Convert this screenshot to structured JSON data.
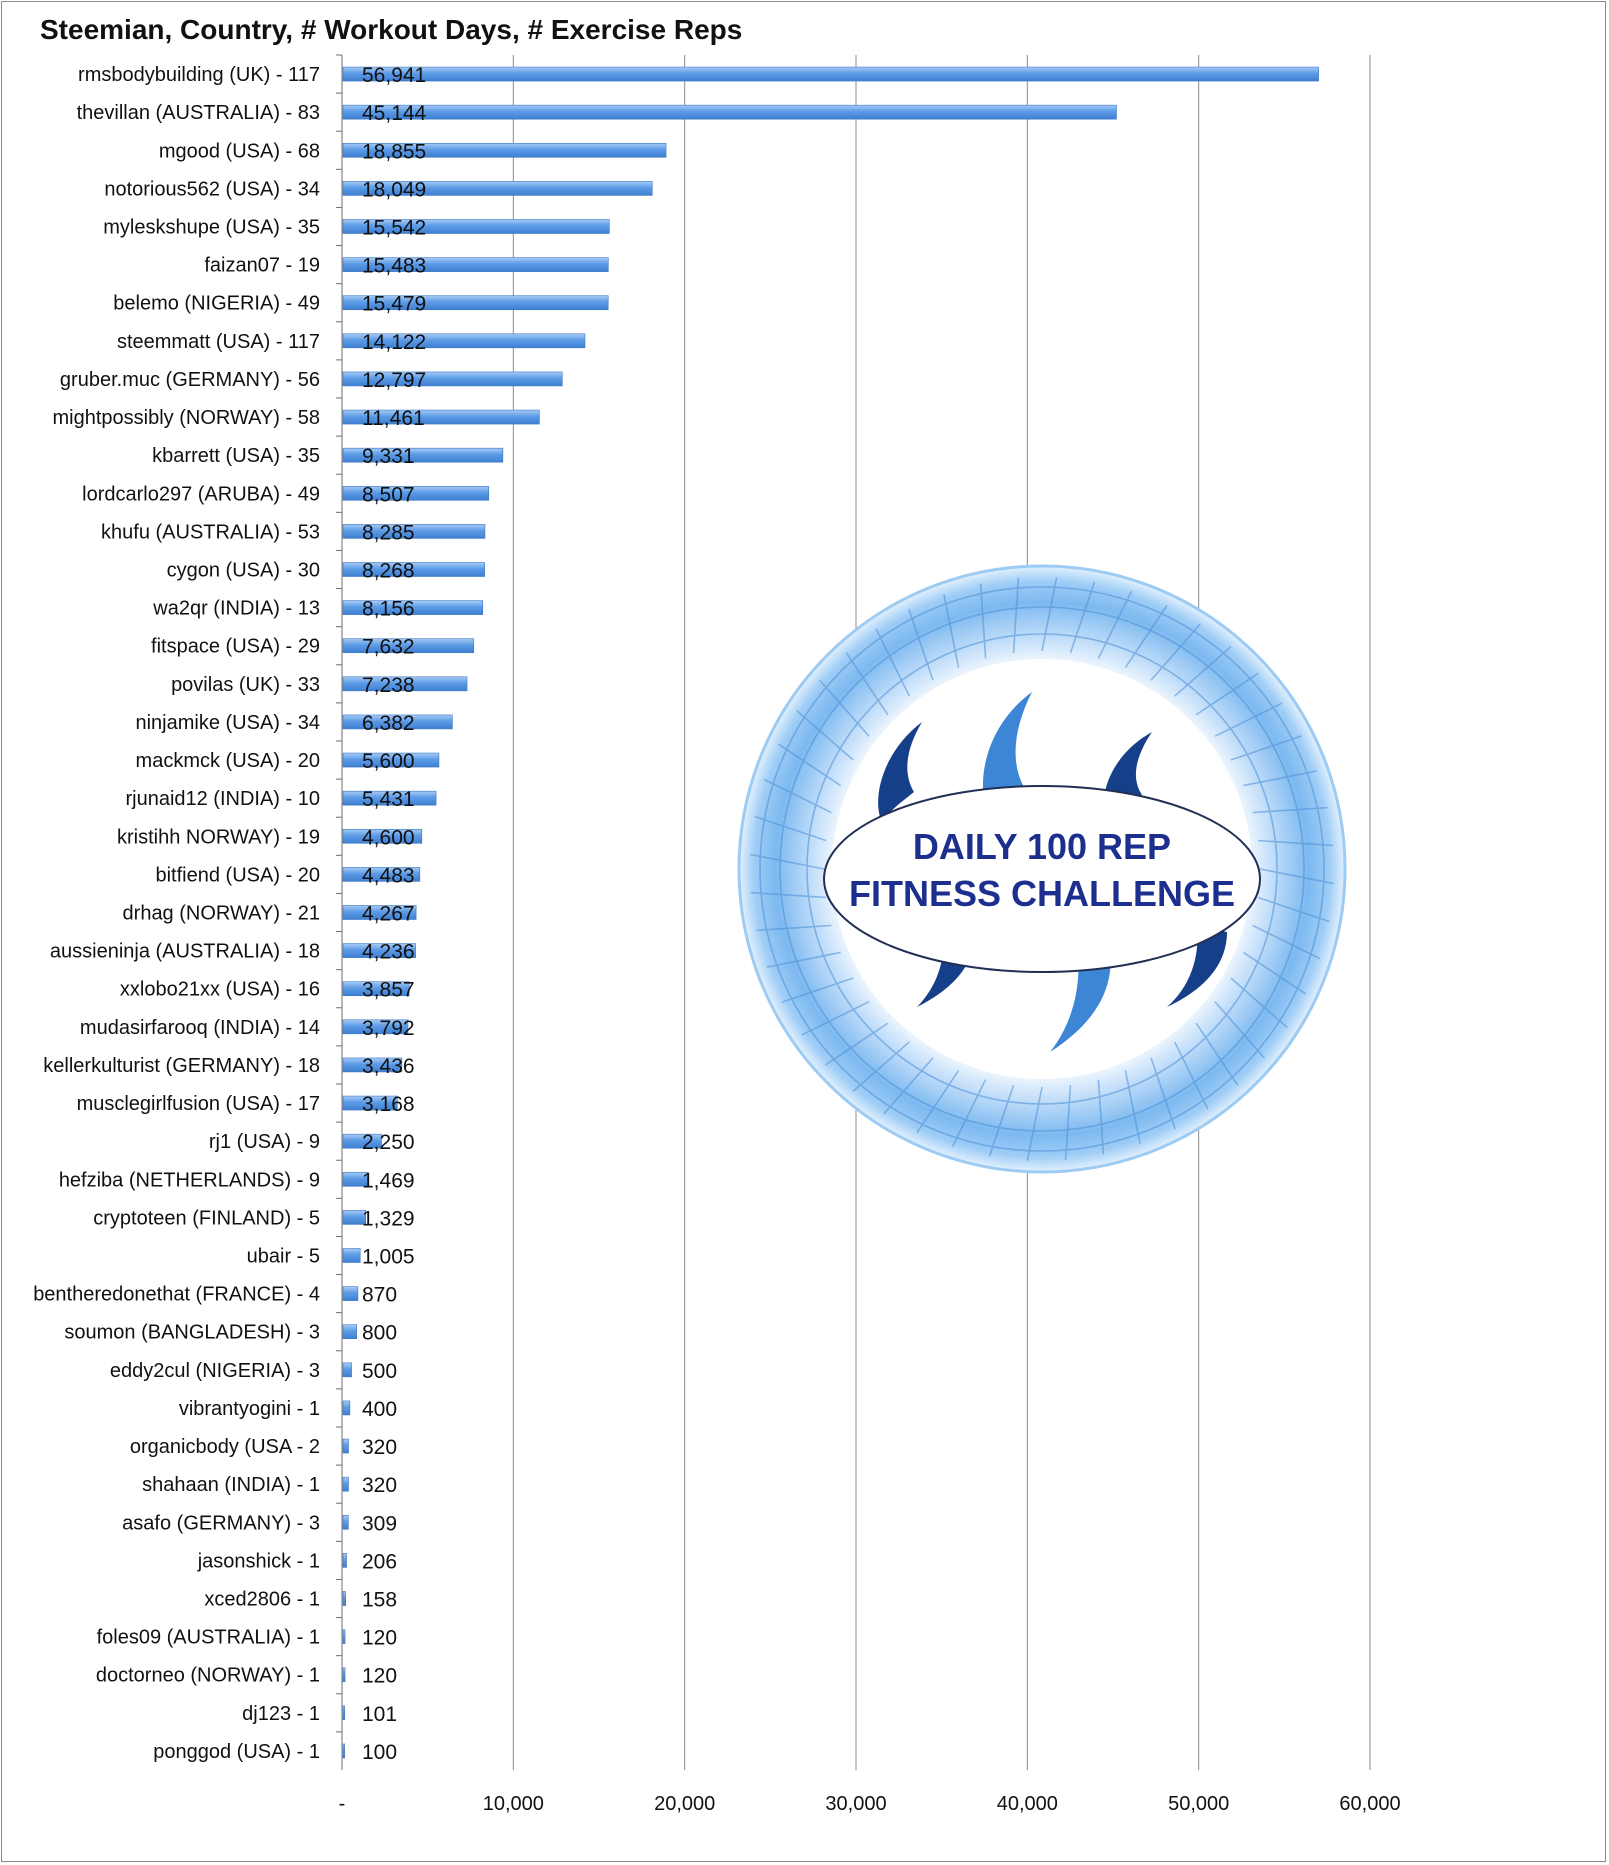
{
  "chart_data": {
    "type": "bar",
    "orientation": "horizontal",
    "title": "Steemian, Country, # Workout Days, # Exercise Reps",
    "xlabel": "",
    "ylabel": "",
    "xlim": [
      0,
      60000
    ],
    "x_ticks": [
      0,
      10000,
      20000,
      30000,
      40000,
      50000,
      60000
    ],
    "x_tick_labels": [
      "-",
      "10,000",
      "20,000",
      "30,000",
      "40,000",
      "50,000",
      "60,000"
    ],
    "grid": "vertical",
    "legend": "none",
    "bar_color": "#5b9be6",
    "categories": [
      "rmsbodybuilding (UK) - 117",
      "thevillan (AUSTRALIA) - 83",
      "mgood (USA) - 68",
      "notorious562 (USA) - 34",
      "myleskshupe (USA) - 35",
      "faizan07 - 19",
      "belemo (NIGERIA) - 49",
      "steemmatt (USA) - 117",
      "gruber.muc (GERMANY) - 56",
      "mightpossibly (NORWAY) - 58",
      "kbarrett (USA) - 35",
      "lordcarlo297 (ARUBA) - 49",
      "khufu (AUSTRALIA) - 53",
      "cygon (USA) - 30",
      "wa2qr (INDIA) - 13",
      "fitspace (USA) - 29",
      "povilas (UK) - 33",
      "ninjamike (USA) - 34",
      "mackmck (USA) - 20",
      "rjunaid12 (INDIA) - 10",
      "kristihh NORWAY) - 19",
      "bitfiend (USA) - 20",
      "drhag (NORWAY) - 21",
      "aussieninja (AUSTRALIA) - 18",
      "xxlobo21xx (USA) - 16",
      "mudasirfarooq (INDIA) - 14",
      "kellerkulturist (GERMANY) - 18",
      "musclegirlfusion (USA) - 17",
      "rj1 (USA) - 9",
      "hefziba (NETHERLANDS) - 9",
      "cryptoteen (FINLAND) - 5",
      "ubair - 5",
      "bentheredonethat (FRANCE) - 4",
      "soumon (BANGLADESH) - 3",
      "eddy2cul (NIGERIA) - 3",
      "vibrantyogini - 1",
      "organicbody (USA - 2",
      "shahaan (INDIA) - 1",
      "asafo (GERMANY) - 3",
      "jasonshick  - 1",
      "xced2806 - 1",
      "foles09 (AUSTRALIA) - 1",
      "doctorneo (NORWAY) - 1",
      "dj123 - 1",
      "ponggod (USA) - 1"
    ],
    "values": [
      56941,
      45144,
      18855,
      18049,
      15542,
      15483,
      15479,
      14122,
      12797,
      11461,
      9331,
      8507,
      8285,
      8268,
      8156,
      7632,
      7238,
      6382,
      5600,
      5431,
      4600,
      4483,
      4267,
      4236,
      3857,
      3792,
      3436,
      3168,
      2250,
      1469,
      1329,
      1005,
      870,
      800,
      500,
      400,
      320,
      320,
      309,
      206,
      158,
      120,
      120,
      101,
      100
    ],
    "value_labels": [
      "56,941",
      "45,144",
      "18,855",
      "18,049",
      "15,542",
      "15,483",
      "15,479",
      "14,122",
      "12,797",
      "11,461",
      "9,331",
      "8,507",
      "8,285",
      "8,268",
      "8,156",
      "7,632",
      "7,238",
      "6,382",
      "5,600",
      "5,431",
      "4,600",
      "4,483",
      "4,267",
      "4,236",
      "3,857",
      "3,792",
      "3,436",
      "3,168",
      "2,250",
      "1,469",
      "1,329",
      "1,005",
      "870",
      "800",
      "500",
      "400",
      "320",
      "320",
      "309",
      "206",
      "158",
      "120",
      "120",
      "101",
      "100"
    ]
  },
  "logo": {
    "line1": "DAILY 100 REP",
    "line2": "FITNESS CHALLENGE"
  }
}
